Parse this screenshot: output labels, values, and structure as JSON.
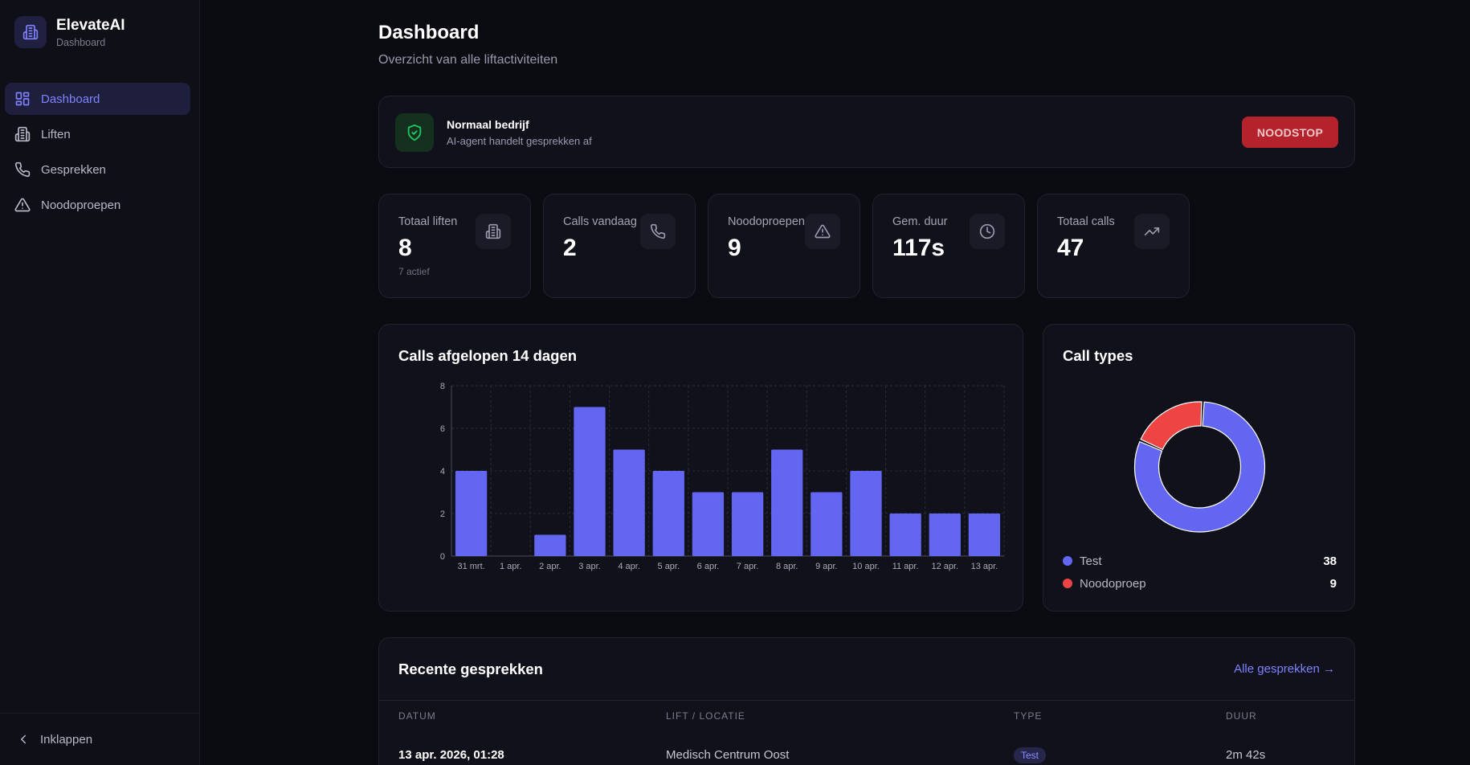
{
  "brand": {
    "name": "ElevateAI",
    "subtitle": "Dashboard"
  },
  "nav": [
    {
      "label": "Dashboard",
      "icon": "grid-icon",
      "active": true
    },
    {
      "label": "Liften",
      "icon": "building-icon",
      "active": false
    },
    {
      "label": "Gesprekken",
      "icon": "phone-icon",
      "active": false
    },
    {
      "label": "Noodoproepen",
      "icon": "warning-icon",
      "active": false
    }
  ],
  "collapse_label": "Inklappen",
  "header": {
    "title": "Dashboard",
    "subtitle": "Overzicht van alle liftactiviteiten"
  },
  "status": {
    "title": "Normaal bedrijf",
    "subtitle": "AI-agent handelt gesprekken af",
    "button": "NOODSTOP"
  },
  "stats": [
    {
      "label": "Totaal liften",
      "value": "8",
      "note": "7 actief",
      "icon": "building-icon"
    },
    {
      "label": "Calls vandaag",
      "value": "2",
      "note": "",
      "icon": "phone-icon"
    },
    {
      "label": "Noodoproepen",
      "value": "9",
      "note": "",
      "icon": "warning-icon"
    },
    {
      "label": "Gem. duur",
      "value": "117s",
      "note": "",
      "icon": "clock-icon"
    },
    {
      "label": "Totaal calls",
      "value": "47",
      "note": "",
      "icon": "trending-up-icon"
    }
  ],
  "calls_chart": {
    "title": "Calls afgelopen 14 dagen"
  },
  "types_chart": {
    "title": "Call types"
  },
  "recent": {
    "title": "Recente gesprekken",
    "link": "Alle gesprekken →",
    "columns": [
      "DATUM",
      "LIFT / LOCATIE",
      "TYPE",
      "DUUR"
    ],
    "rows": [
      {
        "date": "13 apr. 2026, 01:28",
        "location": "Medisch Centrum Oost",
        "type": "Test",
        "duration": "2m 42s"
      }
    ]
  },
  "colors": {
    "accent": "#6366f1",
    "danger": "#ef4444",
    "success": "#22c55e"
  },
  "chart_data": [
    {
      "type": "bar",
      "categories": [
        "31 mrt.",
        "1 apr.",
        "2 apr.",
        "3 apr.",
        "4 apr.",
        "5 apr.",
        "6 apr.",
        "7 apr.",
        "8 apr.",
        "9 apr.",
        "10 apr.",
        "11 apr.",
        "12 apr.",
        "13 apr."
      ],
      "values": [
        4,
        0,
        1,
        7,
        5,
        4,
        3,
        3,
        5,
        3,
        4,
        2,
        2,
        2
      ],
      "ylim": [
        0,
        8
      ],
      "yticks": [
        0,
        2,
        4,
        6,
        8
      ],
      "grid": true,
      "color": "#6366f1"
    },
    {
      "type": "pie",
      "donut": true,
      "labels": [
        "Test",
        "Noodoproep"
      ],
      "values": [
        38,
        9
      ],
      "colors": [
        "#6366f1",
        "#ef4444"
      ],
      "legend": "bottom"
    }
  ]
}
